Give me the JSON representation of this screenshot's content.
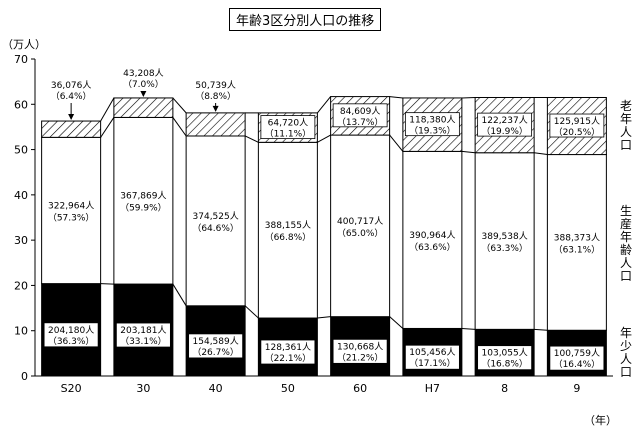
{
  "chart_data": {
    "type": "bar",
    "stacked": true,
    "title": "年齢3区分別人口の推移",
    "y_unit": "（万人）",
    "x_unit": "（年）",
    "ylim": [
      0,
      70
    ],
    "yticks": [
      "0",
      "10",
      "20",
      "30",
      "40",
      "50",
      "60",
      "70"
    ],
    "categories": [
      "S20",
      "30",
      "40",
      "50",
      "60",
      "H7",
      "8",
      "9"
    ],
    "series": [
      {
        "name": "年少人口",
        "fill": "black",
        "values": [
          20.4,
          20.3,
          15.5,
          12.8,
          13.1,
          10.5,
          10.3,
          10.1
        ],
        "labels": [
          "204,180人",
          "203,181人",
          "154,589人",
          "128,361人",
          "130,668人",
          "105,456人",
          "103,055人",
          "100,759人"
        ],
        "pcts": [
          "（36.3%）",
          "（33.1%）",
          "（26.7%）",
          "（22.1%）",
          "（21.2%）",
          "（17.1%）",
          "（16.8%）",
          "（16.4%）"
        ]
      },
      {
        "name": "生産年齢人口",
        "fill": "white",
        "values": [
          32.3,
          36.8,
          37.5,
          38.8,
          40.1,
          39.1,
          39.0,
          38.8
        ],
        "labels": [
          "322,964人",
          "367,869人",
          "374,525人",
          "388,155人",
          "400,717人",
          "390,964人",
          "389,538人",
          "388,373人"
        ],
        "pcts": [
          "（57.3%）",
          "（59.9%）",
          "（64.6%）",
          "（66.8%）",
          "（65.0%）",
          "（63.6%）",
          "（63.3%）",
          "（63.1%）"
        ]
      },
      {
        "name": "老年人口",
        "fill": "hatched",
        "values": [
          3.6,
          4.3,
          5.1,
          6.5,
          8.5,
          11.8,
          12.2,
          12.6
        ],
        "labels": [
          "36,076人",
          "43,208人",
          "50,739人",
          "64,720人",
          "84,609人",
          "118,380人",
          "122,237人",
          "125,915人"
        ],
        "pcts": [
          "（6.4%）",
          "（7.0%）",
          "（8.8%）",
          "（11.1%）",
          "（13.7%）",
          "（19.3%）",
          "（19.9%）",
          "（20.5%）"
        ]
      }
    ],
    "legend": [
      "老年人口",
      "生産年齢人口",
      "年少人口"
    ],
    "legend_position": "right"
  }
}
